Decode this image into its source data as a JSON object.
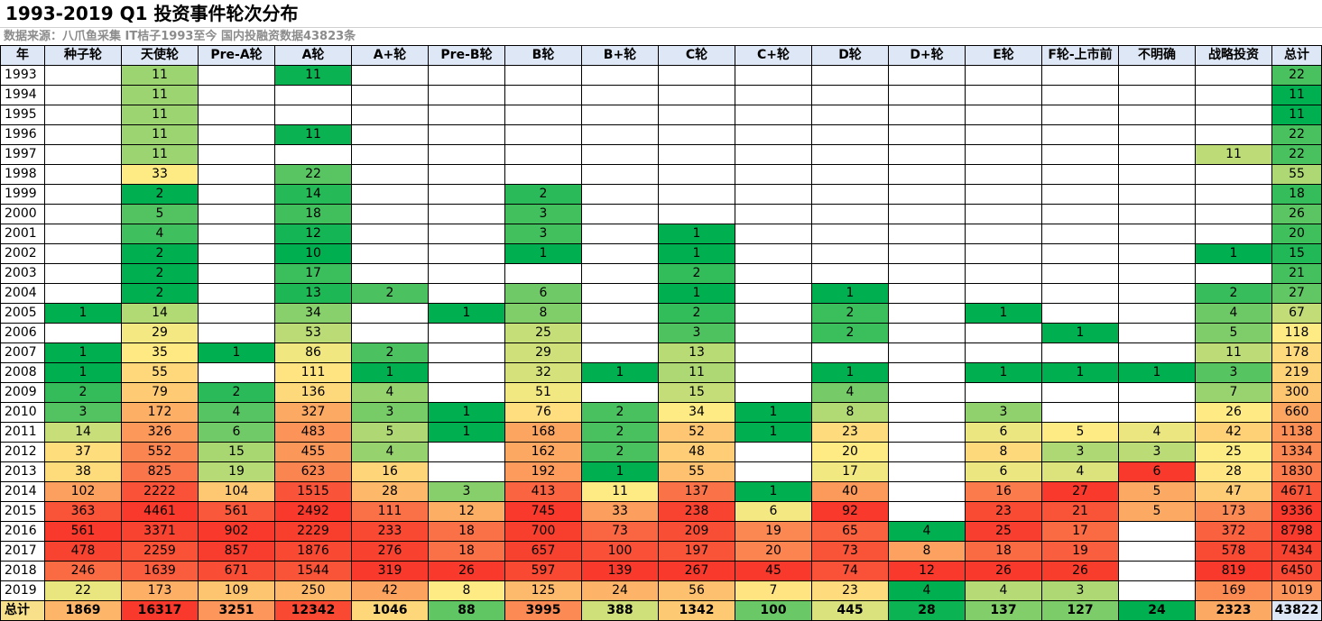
{
  "title": "1993-2019 Q1 投资事件轮次分布",
  "source": "数据来源：八爪鱼采集 IT桔子1993至今 国内投融资数据43823条",
  "headers": [
    "年",
    "种子轮",
    "天使轮",
    "Pre-A轮",
    "A轮",
    "A+轮",
    "Pre-B轮",
    "B轮",
    "B+轮",
    "C轮",
    "C+轮",
    "D轮",
    "D+轮",
    "E轮",
    "F轮-上市前",
    "不明确",
    "战略投资",
    "总计"
  ],
  "rows": [
    [
      "1993",
      "",
      "11",
      "",
      "11",
      "",
      "",
      "",
      "",
      "",
      "",
      "",
      "",
      "",
      "",
      "",
      "",
      "22"
    ],
    [
      "1994",
      "",
      "11",
      "",
      "",
      "",
      "",
      "",
      "",
      "",
      "",
      "",
      "",
      "",
      "",
      "",
      "",
      "11"
    ],
    [
      "1995",
      "",
      "11",
      "",
      "",
      "",
      "",
      "",
      "",
      "",
      "",
      "",
      "",
      "",
      "",
      "",
      "",
      "11"
    ],
    [
      "1996",
      "",
      "11",
      "",
      "11",
      "",
      "",
      "",
      "",
      "",
      "",
      "",
      "",
      "",
      "",
      "",
      "",
      "22"
    ],
    [
      "1997",
      "",
      "11",
      "",
      "",
      "",
      "",
      "",
      "",
      "",
      "",
      "",
      "",
      "",
      "",
      "",
      "11",
      "22"
    ],
    [
      "1998",
      "",
      "33",
      "",
      "22",
      "",
      "",
      "",
      "",
      "",
      "",
      "",
      "",
      "",
      "",
      "",
      "",
      "55"
    ],
    [
      "1999",
      "",
      "2",
      "",
      "14",
      "",
      "",
      "2",
      "",
      "",
      "",
      "",
      "",
      "",
      "",
      "",
      "",
      "18"
    ],
    [
      "2000",
      "",
      "5",
      "",
      "18",
      "",
      "",
      "3",
      "",
      "",
      "",
      "",
      "",
      "",
      "",
      "",
      "",
      "26"
    ],
    [
      "2001",
      "",
      "4",
      "",
      "12",
      "",
      "",
      "3",
      "",
      "1",
      "",
      "",
      "",
      "",
      "",
      "",
      "",
      "20"
    ],
    [
      "2002",
      "",
      "2",
      "",
      "10",
      "",
      "",
      "1",
      "",
      "1",
      "",
      "",
      "",
      "",
      "",
      "",
      "1",
      "15"
    ],
    [
      "2003",
      "",
      "2",
      "",
      "17",
      "",
      "",
      "",
      "",
      "2",
      "",
      "",
      "",
      "",
      "",
      "",
      "",
      "21"
    ],
    [
      "2004",
      "",
      "2",
      "",
      "13",
      "2",
      "",
      "6",
      "",
      "1",
      "",
      "1",
      "",
      "",
      "",
      "",
      "2",
      "27"
    ],
    [
      "2005",
      "1",
      "14",
      "",
      "34",
      "",
      "1",
      "8",
      "",
      "2",
      "",
      "2",
      "",
      "1",
      "",
      "",
      "4",
      "67"
    ],
    [
      "2006",
      "",
      "29",
      "",
      "53",
      "",
      "",
      "25",
      "",
      "3",
      "",
      "2",
      "",
      "",
      "1",
      "",
      "5",
      "118"
    ],
    [
      "2007",
      "1",
      "35",
      "1",
      "86",
      "2",
      "",
      "29",
      "",
      "13",
      "",
      "",
      "",
      "",
      "",
      "",
      "11",
      "178"
    ],
    [
      "2008",
      "1",
      "55",
      "",
      "111",
      "1",
      "",
      "32",
      "1",
      "11",
      "",
      "1",
      "",
      "1",
      "1",
      "1",
      "3",
      "219"
    ],
    [
      "2009",
      "2",
      "79",
      "2",
      "136",
      "4",
      "",
      "51",
      "",
      "15",
      "",
      "4",
      "",
      "",
      "",
      "",
      "7",
      "300"
    ],
    [
      "2010",
      "3",
      "172",
      "4",
      "327",
      "3",
      "1",
      "76",
      "2",
      "34",
      "1",
      "8",
      "",
      "3",
      "",
      "",
      "26",
      "660"
    ],
    [
      "2011",
      "14",
      "326",
      "6",
      "483",
      "5",
      "1",
      "168",
      "2",
      "52",
      "1",
      "23",
      "",
      "6",
      "5",
      "4",
      "42",
      "1138"
    ],
    [
      "2012",
      "37",
      "552",
      "15",
      "455",
      "4",
      "",
      "162",
      "2",
      "48",
      "",
      "20",
      "",
      "8",
      "3",
      "3",
      "25",
      "1334"
    ],
    [
      "2013",
      "38",
      "825",
      "19",
      "623",
      "16",
      "",
      "192",
      "1",
      "55",
      "",
      "17",
      "",
      "6",
      "4",
      "6",
      "28",
      "1830"
    ],
    [
      "2014",
      "102",
      "2222",
      "104",
      "1515",
      "28",
      "3",
      "413",
      "11",
      "137",
      "1",
      "40",
      "",
      "16",
      "27",
      "5",
      "47",
      "4671"
    ],
    [
      "2015",
      "363",
      "4461",
      "561",
      "2492",
      "111",
      "12",
      "745",
      "33",
      "238",
      "6",
      "92",
      "",
      "23",
      "21",
      "5",
      "173",
      "9336"
    ],
    [
      "2016",
      "561",
      "3371",
      "902",
      "2229",
      "233",
      "18",
      "700",
      "73",
      "209",
      "19",
      "65",
      "4",
      "25",
      "17",
      "",
      "372",
      "8798"
    ],
    [
      "2017",
      "478",
      "2259",
      "857",
      "1876",
      "276",
      "18",
      "657",
      "100",
      "197",
      "20",
      "73",
      "8",
      "18",
      "19",
      "",
      "578",
      "7434"
    ],
    [
      "2018",
      "246",
      "1639",
      "671",
      "1544",
      "319",
      "26",
      "597",
      "139",
      "267",
      "45",
      "74",
      "12",
      "26",
      "26",
      "",
      "819",
      "6450"
    ],
    [
      "2019",
      "22",
      "173",
      "109",
      "250",
      "42",
      "8",
      "125",
      "24",
      "56",
      "7",
      "23",
      "4",
      "4",
      "3",
      "",
      "169",
      "1019"
    ]
  ],
  "totals": [
    "总计",
    "1869",
    "16317",
    "3251",
    "12342",
    "1046",
    "88",
    "3995",
    "388",
    "1342",
    "100",
    "445",
    "28",
    "137",
    "127",
    "24",
    "2323",
    "43822"
  ],
  "colors": {
    "header_bg": "#dde7f5",
    "grand_total_bg": "#dde7f5",
    "scale_low": "#00b050",
    "scale_mid": "#ffeb84",
    "scale_high": "#f8392b"
  }
}
